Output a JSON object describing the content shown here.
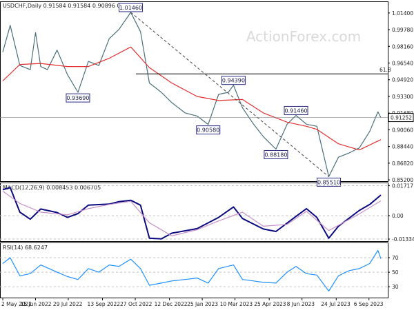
{
  "chart_data": [
    {
      "type": "line",
      "panel": "price",
      "header": "USDCHF,Daily  0.91584 0.91584 0.90896 0.91252",
      "y_ticks": [
        "1.01400",
        "0.99780",
        "0.98160",
        "0.96540",
        "0.94920",
        "0.93300",
        "0.91680",
        "0.90060",
        "0.88440",
        "0.86820",
        "0.85200"
      ],
      "ylim": [
        0.8507,
        1.0246
      ],
      "last_price_label": "0.91252",
      "last_price": 0.91252,
      "fib_label": "61.8",
      "fib_level": 0.9549,
      "watermark": "ActionForex.com",
      "annotations": [
        {
          "text": "1.01460",
          "value": 1.0146,
          "date": "2022-10-21"
        },
        {
          "text": "0.93690",
          "value": 0.9369,
          "date": "2022-08-11"
        },
        {
          "text": "0.94390",
          "value": 0.9439,
          "date": "2023-03-08"
        },
        {
          "text": "0.90580",
          "value": 0.9058,
          "date": "2023-02-02"
        },
        {
          "text": "0.91460",
          "value": 0.9146,
          "date": "2023-05-31"
        },
        {
          "text": "0.88180",
          "value": 0.8818,
          "date": "2023-05-04"
        },
        {
          "text": "0.85510",
          "value": 0.8551,
          "date": "2023-07-14"
        }
      ],
      "series": [
        {
          "name": "price",
          "color": "#4a6f7a",
          "x": [
            "2022-05-02",
            "2022-05-12",
            "2022-05-25",
            "2022-06-08",
            "2022-06-15",
            "2022-06-22",
            "2022-07-01",
            "2022-07-14",
            "2022-07-28",
            "2022-08-11",
            "2022-08-25",
            "2022-09-08",
            "2022-09-22",
            "2022-10-05",
            "2022-10-21",
            "2022-11-03",
            "2022-11-15",
            "2022-12-01",
            "2022-12-15",
            "2023-01-02",
            "2023-01-18",
            "2023-02-02",
            "2023-02-16",
            "2023-03-01",
            "2023-03-08",
            "2023-03-20",
            "2023-04-04",
            "2023-04-17",
            "2023-05-04",
            "2023-05-19",
            "2023-05-31",
            "2023-06-14",
            "2023-06-28",
            "2023-07-14",
            "2023-07-27",
            "2023-08-10",
            "2023-08-24",
            "2023-09-07",
            "2023-09-18",
            "2023-09-22"
          ],
          "y": [
            0.976,
            1.002,
            0.963,
            0.959,
            0.995,
            0.962,
            0.959,
            0.978,
            0.954,
            0.937,
            0.967,
            0.963,
            0.989,
            0.998,
            1.0146,
            0.996,
            0.946,
            0.937,
            0.927,
            0.917,
            0.914,
            0.9058,
            0.935,
            0.937,
            0.9439,
            0.922,
            0.906,
            0.894,
            0.8818,
            0.906,
            0.9146,
            0.906,
            0.904,
            0.8551,
            0.874,
            0.878,
            0.883,
            0.899,
            0.918,
            0.9125
          ]
        },
        {
          "name": "ma",
          "color": "#e03030",
          "x": [
            "2022-05-02",
            "2022-05-25",
            "2022-06-22",
            "2022-07-28",
            "2022-08-25",
            "2022-09-22",
            "2022-10-21",
            "2022-11-15",
            "2022-12-15",
            "2023-01-18",
            "2023-02-16",
            "2023-03-20",
            "2023-04-17",
            "2023-05-19",
            "2023-06-14",
            "2023-06-28",
            "2023-07-27",
            "2023-08-24",
            "2023-09-22"
          ],
          "y": [
            0.948,
            0.964,
            0.965,
            0.962,
            0.962,
            0.97,
            0.981,
            0.961,
            0.946,
            0.933,
            0.929,
            0.93,
            0.917,
            0.908,
            0.904,
            0.901,
            0.887,
            0.881,
            0.891
          ]
        }
      ]
    },
    {
      "type": "line",
      "panel": "macd",
      "header": "MACD(12,26,9) 0.008453 0.006705",
      "y_ticks": [
        "0.01717",
        "0.00",
        "-0.01334"
      ],
      "ylim": [
        -0.0145,
        0.0185
      ],
      "series": [
        {
          "name": "macd",
          "color": "#0a0a80",
          "x": [
            "2022-05-02",
            "2022-05-12",
            "2022-05-25",
            "2022-06-08",
            "2022-06-22",
            "2022-07-14",
            "2022-07-28",
            "2022-08-11",
            "2022-08-25",
            "2022-09-22",
            "2022-10-05",
            "2022-10-21",
            "2022-11-03",
            "2022-11-15",
            "2022-12-01",
            "2022-12-15",
            "2023-01-18",
            "2023-02-16",
            "2023-03-08",
            "2023-03-20",
            "2023-04-17",
            "2023-05-04",
            "2023-05-31",
            "2023-06-14",
            "2023-06-28",
            "2023-07-14",
            "2023-07-27",
            "2023-08-24",
            "2023-09-07",
            "2023-09-22"
          ],
          "y": [
            0.0148,
            0.016,
            0.002,
            -0.002,
            0.0038,
            0.0018,
            -0.001,
            0.0012,
            0.006,
            0.0066,
            0.008,
            0.0088,
            0.006,
            -0.0128,
            -0.0132,
            -0.01,
            -0.0074,
            -0.001,
            0.005,
            -0.0016,
            -0.0076,
            -0.009,
            -0.0004,
            0.004,
            -0.001,
            -0.0128,
            -0.006,
            0.003,
            0.0064,
            0.0118
          ]
        },
        {
          "name": "signal",
          "color": "#c890c8",
          "x": [
            "2022-05-02",
            "2022-05-25",
            "2022-06-22",
            "2022-07-28",
            "2022-08-25",
            "2022-09-22",
            "2022-10-21",
            "2022-11-15",
            "2022-12-15",
            "2023-01-18",
            "2023-02-16",
            "2023-03-20",
            "2023-04-17",
            "2023-05-19",
            "2023-06-14",
            "2023-07-14",
            "2023-08-24",
            "2023-09-22"
          ],
          "y": [
            0.014,
            0.007,
            0.002,
            0.0005,
            0.004,
            0.0064,
            0.0082,
            -0.004,
            -0.0115,
            -0.008,
            -0.003,
            0.002,
            -0.006,
            -0.005,
            0.0025,
            -0.0085,
            0.001,
            0.0085
          ]
        }
      ]
    },
    {
      "type": "line",
      "panel": "rsi",
      "header": "RSI(14) 68.6247",
      "y_ticks": [
        "70",
        "50",
        "30"
      ],
      "ylim": [
        15,
        90
      ],
      "series": [
        {
          "name": "rsi",
          "color": "#1e90ff",
          "x": [
            "2022-05-02",
            "2022-05-12",
            "2022-05-25",
            "2022-06-08",
            "2022-06-22",
            "2022-07-14",
            "2022-07-28",
            "2022-08-11",
            "2022-08-25",
            "2022-09-08",
            "2022-09-22",
            "2022-10-05",
            "2022-10-21",
            "2022-11-03",
            "2022-11-15",
            "2022-12-01",
            "2022-12-15",
            "2023-01-02",
            "2023-01-18",
            "2023-02-02",
            "2023-02-16",
            "2023-03-08",
            "2023-03-20",
            "2023-04-04",
            "2023-04-17",
            "2023-05-04",
            "2023-05-19",
            "2023-05-31",
            "2023-06-14",
            "2023-06-28",
            "2023-07-14",
            "2023-07-27",
            "2023-08-10",
            "2023-08-24",
            "2023-09-07",
            "2023-09-18",
            "2023-09-22"
          ],
          "y": [
            62,
            70,
            45,
            48,
            60,
            50,
            44,
            40,
            55,
            50,
            60,
            58,
            68,
            55,
            32,
            35,
            38,
            40,
            42,
            35,
            55,
            60,
            40,
            38,
            36,
            35,
            50,
            58,
            48,
            46,
            24,
            45,
            52,
            55,
            62,
            80,
            68.6
          ]
        }
      ]
    }
  ],
  "x_axis": {
    "labels": [
      "2 May 2022",
      "15 Jun 2022",
      "29 Jul 2022",
      "13 Sep 2022",
      "27 Oct 2022",
      "12 Dec 2022",
      "25 Jan 2023",
      "10 Mar 2023",
      "25 Apr 2023",
      "8 Jun 2023",
      "24 Jul 2023",
      "6 Sep 2023"
    ],
    "dates": [
      "2022-05-02",
      "2022-06-15",
      "2022-07-29",
      "2022-09-13",
      "2022-10-27",
      "2022-12-12",
      "2023-01-25",
      "2023-03-10",
      "2023-04-25",
      "2023-06-08",
      "2023-07-24",
      "2023-09-06"
    ]
  }
}
